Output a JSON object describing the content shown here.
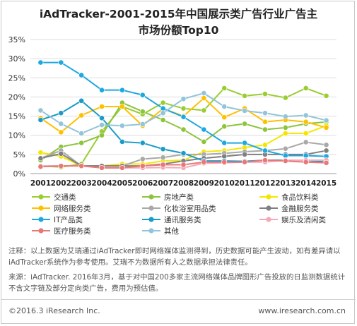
{
  "title_line1": "iAdTracker-2001-2015年中国展示类广告行业广告主",
  "title_line2": "市场份额Top10",
  "notes": {
    "note": "注释：以上数据为艾瑞通过iAdTracker即时网络媒体监测得到，历史数据可能产生波动，如有差异请以iAdTracker系统作为参考使用。艾瑞不为数据所有人之数据承担法律责任。",
    "source": "来源：iAdTracker. 2016年3月，基于对中国200多家主流网络媒体品牌图形广告投放的日监测数据统计不含文字链及部分定向类广告，费用为预估值。"
  },
  "footer": {
    "copyright": "©2016.3 iResearch Inc.",
    "website": "www.iresearch.com.cn"
  },
  "chart_data": {
    "type": "line",
    "title": "iAdTracker-2001-2015年中国展示类广告行业广告主市场份额Top10",
    "x": [
      "2001",
      "2002",
      "2003",
      "2004",
      "2005",
      "2006",
      "2007",
      "2008",
      "2009",
      "2010",
      "2011",
      "2012",
      "2013",
      "2014",
      "2015"
    ],
    "ylim": [
      0,
      35
    ],
    "yticks": [
      "0%",
      "5%",
      "10%",
      "15%",
      "20%",
      "25%",
      "30%",
      "35%"
    ],
    "ytick_values": [
      0,
      5,
      10,
      15,
      20,
      25,
      30,
      35
    ],
    "grid": "horizontal",
    "legend_position": "bottom",
    "series": [
      {
        "name": "交通类",
        "color": "#9ACD32",
        "values": [
          2.0,
          1.7,
          2.5,
          11.0,
          17.5,
          15.5,
          18.5,
          17.0,
          16.5,
          22.3,
          20.3,
          20.8,
          19.8,
          22.3,
          20.3
        ]
      },
      {
        "name": "房地产类",
        "color": "#8DC43C",
        "values": [
          3.5,
          7.0,
          8.0,
          10.0,
          18.5,
          16.2,
          14.0,
          11.5,
          8.3,
          12.3,
          13.0,
          11.5,
          12.0,
          13.0,
          13.5
        ]
      },
      {
        "name": "食品饮料类",
        "color": "#F5E600",
        "values": [
          5.5,
          4.5,
          2.0,
          2.0,
          2.5,
          2.5,
          3.3,
          3.5,
          5.7,
          6.0,
          6.8,
          7.5,
          10.5,
          10.5,
          12.5
        ]
      },
      {
        "name": "网络服务类",
        "color": "#FFC000",
        "values": [
          14.5,
          10.8,
          15.2,
          17.5,
          17.5,
          12.5,
          17.0,
          15.0,
          19.7,
          14.7,
          17.0,
          13.5,
          14.0,
          13.5,
          12.0
        ]
      },
      {
        "name": "化妆浴室用品类",
        "color": "#A9A9A9",
        "values": [
          4.0,
          6.0,
          2.0,
          2.0,
          2.0,
          3.8,
          4.2,
          5.0,
          5.0,
          5.3,
          5.7,
          6.0,
          6.5,
          8.2,
          7.5
        ]
      },
      {
        "name": "金融服务类",
        "color": "#808080",
        "values": [
          4.0,
          5.2,
          2.0,
          2.0,
          2.0,
          2.0,
          2.5,
          3.3,
          4.0,
          4.5,
          5.0,
          5.0,
          5.0,
          5.0,
          6.0
        ]
      },
      {
        "name": "IT产品类",
        "color": "#1EA8E0",
        "values": [
          29.0,
          29.0,
          25.7,
          21.8,
          21.8,
          20.5,
          17.0,
          14.8,
          11.5,
          8.0,
          8.0,
          6.0,
          4.7,
          4.7,
          4.5
        ]
      },
      {
        "name": "通讯服务类",
        "color": "#1A9BC8",
        "values": [
          14.0,
          15.8,
          19.0,
          14.5,
          8.3,
          8.0,
          6.4,
          5.3,
          3.3,
          3.3,
          3.2,
          3.5,
          3.5,
          3.5,
          3.0
        ]
      },
      {
        "name": "娱乐及消闲类",
        "color": "#F4A9B8",
        "values": [
          2.0,
          2.0,
          2.0,
          1.5,
          1.5,
          1.5,
          1.6,
          1.5,
          2.7,
          2.8,
          3.0,
          3.0,
          3.5,
          3.5,
          3.5
        ]
      },
      {
        "name": "医疗服务类",
        "color": "#E87878",
        "values": [
          1.8,
          2.0,
          2.0,
          1.5,
          1.5,
          2.0,
          2.3,
          2.3,
          3.0,
          3.0,
          3.0,
          3.5,
          3.3,
          3.0,
          2.8
        ]
      },
      {
        "name": "其他",
        "color": "#92C4DA",
        "values": [
          16.5,
          13.0,
          10.5,
          12.7,
          12.5,
          12.9,
          15.8,
          19.5,
          21.0,
          17.5,
          16.4,
          15.8,
          14.9,
          15.2,
          13.9
        ]
      }
    ]
  }
}
